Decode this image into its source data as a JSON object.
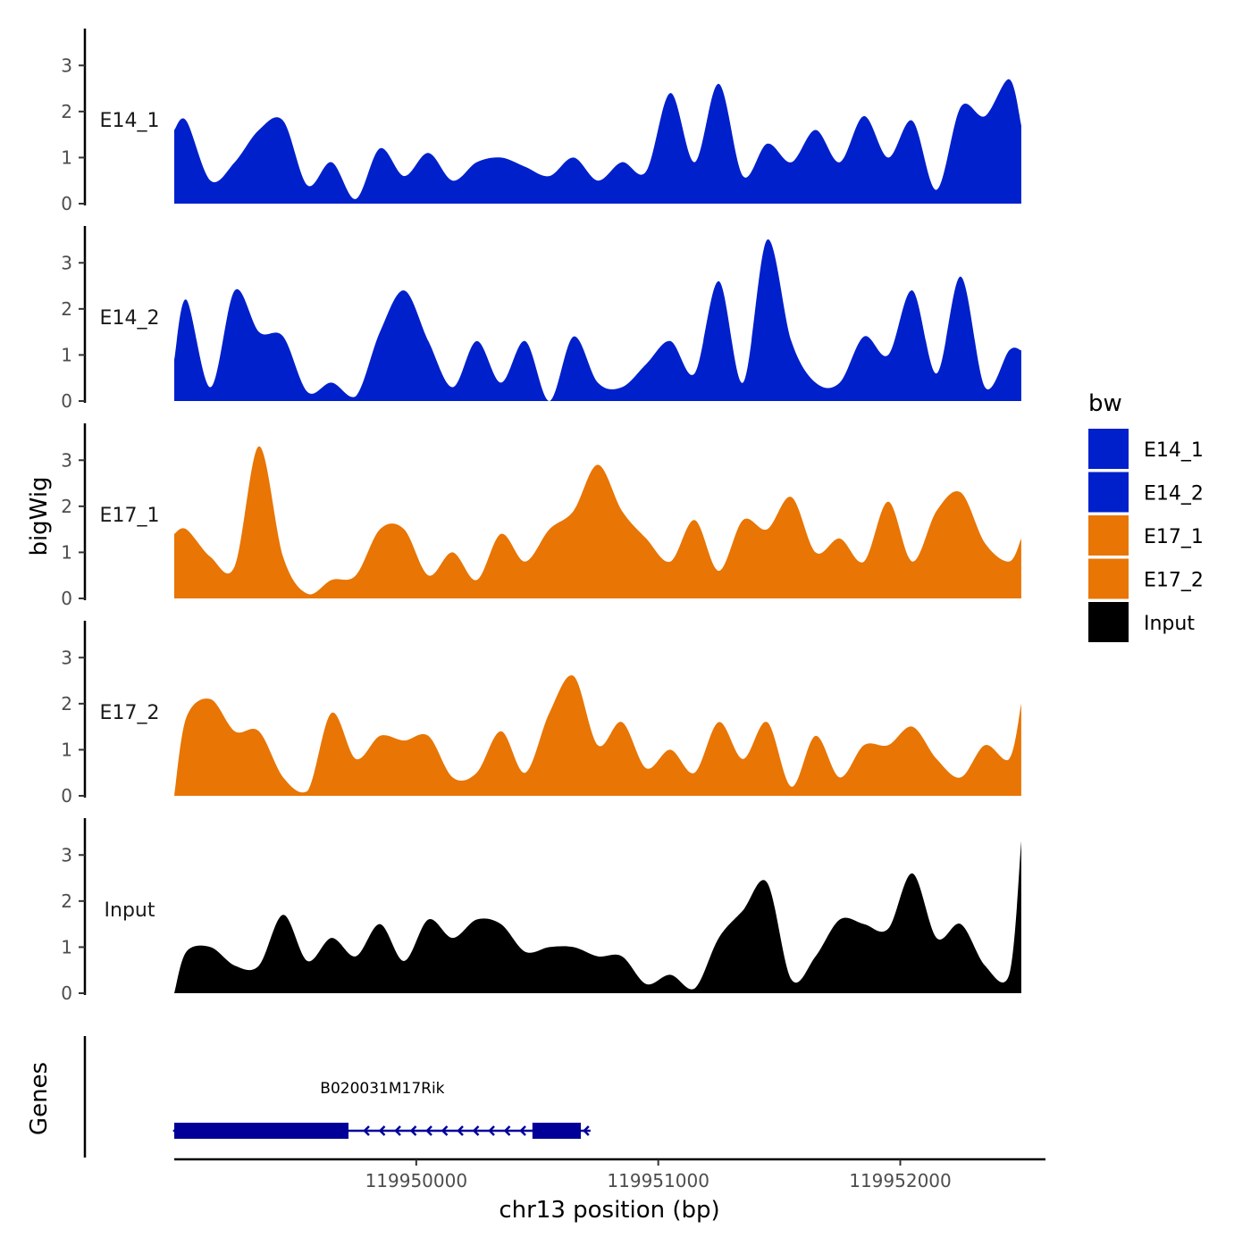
{
  "chart_data": {
    "type": "area",
    "xlabel": "chr13 position (bp)",
    "ylabel": "bigWig",
    "genes_label": "Genes",
    "xlim": [
      119949000,
      119952600
    ],
    "x_ticks": [
      {
        "value": 119950000,
        "label": "119950000"
      },
      {
        "value": 119951000,
        "label": "119951000"
      },
      {
        "value": 119952000,
        "label": "119952000"
      }
    ],
    "ylim": [
      0,
      3.8
    ],
    "y_ticks": [
      {
        "value": 0,
        "label": "0"
      },
      {
        "value": 1,
        "label": "1"
      },
      {
        "value": 2,
        "label": "2"
      },
      {
        "value": 3,
        "label": "3"
      }
    ],
    "legend": {
      "title": "bw",
      "entries": [
        {
          "name": "E14_1",
          "color": "#0020CC"
        },
        {
          "name": "E14_2",
          "color": "#0020CC"
        },
        {
          "name": "E17_1",
          "color": "#E87504"
        },
        {
          "name": "E17_2",
          "color": "#E87504"
        },
        {
          "name": "Input",
          "color": "#000000"
        }
      ]
    },
    "series": [
      {
        "name": "E14_1",
        "color": "#0020CC",
        "x": [
          119949000,
          119949050,
          119949150,
          119949250,
          119949350,
          119949450,
          119949550,
          119949650,
          119949750,
          119949850,
          119949950,
          119950050,
          119950150,
          119950250,
          119950350,
          119950450,
          119950550,
          119950650,
          119950750,
          119950850,
          119950950,
          119951050,
          119951150,
          119951250,
          119951350,
          119951450,
          119951550,
          119951650,
          119951750,
          119951850,
          119951950,
          119952050,
          119952150,
          119952250,
          119952350,
          119952450,
          119952500
        ],
        "values": [
          1.6,
          1.8,
          0.5,
          0.9,
          1.6,
          1.8,
          0.4,
          0.9,
          0.1,
          1.2,
          0.6,
          1.1,
          0.5,
          0.9,
          1.0,
          0.8,
          0.6,
          1.0,
          0.5,
          0.9,
          0.7,
          2.4,
          0.9,
          2.6,
          0.6,
          1.3,
          0.9,
          1.6,
          0.9,
          1.9,
          1.0,
          1.8,
          0.3,
          2.1,
          1.9,
          2.7,
          1.7
        ]
      },
      {
        "name": "E14_2",
        "color": "#0020CC",
        "x": [
          119949000,
          119949050,
          119949150,
          119949250,
          119949350,
          119949450,
          119949550,
          119949650,
          119949750,
          119949850,
          119949950,
          119950050,
          119950150,
          119950250,
          119950350,
          119950450,
          119950550,
          119950650,
          119950750,
          119950850,
          119950950,
          119951050,
          119951150,
          119951250,
          119951350,
          119951450,
          119951550,
          119951650,
          119951750,
          119951850,
          119951950,
          119952050,
          119952150,
          119952250,
          119952350,
          119952450,
          119952500
        ],
        "values": [
          0.9,
          2.2,
          0.3,
          2.4,
          1.5,
          1.4,
          0.2,
          0.4,
          0.1,
          1.5,
          2.4,
          1.3,
          0.3,
          1.3,
          0.4,
          1.3,
          0.0,
          1.4,
          0.4,
          0.3,
          0.8,
          1.3,
          0.6,
          2.6,
          0.4,
          3.5,
          1.3,
          0.4,
          0.4,
          1.4,
          1.0,
          2.4,
          0.6,
          2.7,
          0.3,
          1.1,
          1.1
        ]
      },
      {
        "name": "E17_1",
        "color": "#E87504",
        "x": [
          119949000,
          119949050,
          119949150,
          119949250,
          119949350,
          119949450,
          119949550,
          119949650,
          119949750,
          119949850,
          119949950,
          119950050,
          119950150,
          119950250,
          119950350,
          119950450,
          119950550,
          119950650,
          119950750,
          119950850,
          119950950,
          119951050,
          119951150,
          119951250,
          119951350,
          119951450,
          119951550,
          119951650,
          119951750,
          119951850,
          119951950,
          119952050,
          119952150,
          119952250,
          119952350,
          119952450,
          119952500
        ],
        "values": [
          1.4,
          1.5,
          0.9,
          0.7,
          3.3,
          0.9,
          0.1,
          0.4,
          0.5,
          1.5,
          1.5,
          0.5,
          1.0,
          0.4,
          1.4,
          0.8,
          1.5,
          1.9,
          2.9,
          1.9,
          1.3,
          0.8,
          1.7,
          0.6,
          1.7,
          1.5,
          2.2,
          1.0,
          1.3,
          0.8,
          2.1,
          0.8,
          1.9,
          2.3,
          1.2,
          0.8,
          1.3
        ]
      },
      {
        "name": "E17_2",
        "color": "#E87504",
        "x": [
          119949000,
          119949050,
          119949150,
          119949250,
          119949350,
          119949450,
          119949550,
          119949650,
          119949750,
          119949850,
          119949950,
          119950050,
          119950150,
          119950250,
          119950350,
          119950450,
          119950550,
          119950650,
          119950750,
          119950850,
          119950950,
          119951050,
          119951150,
          119951250,
          119951350,
          119951450,
          119951550,
          119951650,
          119951750,
          119951850,
          119951950,
          119952050,
          119952150,
          119952250,
          119952350,
          119952450,
          119952500
        ],
        "values": [
          0.0,
          1.7,
          2.1,
          1.4,
          1.4,
          0.4,
          0.1,
          1.8,
          0.8,
          1.3,
          1.2,
          1.3,
          0.4,
          0.5,
          1.4,
          0.5,
          1.8,
          2.6,
          1.1,
          1.6,
          0.6,
          1.0,
          0.5,
          1.6,
          0.8,
          1.6,
          0.2,
          1.3,
          0.4,
          1.1,
          1.1,
          1.5,
          0.8,
          0.4,
          1.1,
          0.8,
          2.0
        ]
      },
      {
        "name": "Input",
        "color": "#000000",
        "x": [
          119949000,
          119949050,
          119949150,
          119949250,
          119949350,
          119949450,
          119949550,
          119949650,
          119949750,
          119949850,
          119949950,
          119950050,
          119950150,
          119950250,
          119950350,
          119950450,
          119950550,
          119950650,
          119950750,
          119950850,
          119950950,
          119951050,
          119951150,
          119951250,
          119951350,
          119951450,
          119951550,
          119951650,
          119951750,
          119951850,
          119951950,
          119952050,
          119952150,
          119952250,
          119952350,
          119952450,
          119952500
        ],
        "values": [
          0.0,
          0.9,
          1.0,
          0.6,
          0.6,
          1.7,
          0.7,
          1.2,
          0.8,
          1.5,
          0.7,
          1.6,
          1.2,
          1.6,
          1.5,
          0.9,
          1.0,
          1.0,
          0.8,
          0.8,
          0.2,
          0.4,
          0.1,
          1.2,
          1.8,
          2.4,
          0.3,
          0.8,
          1.6,
          1.5,
          1.4,
          2.6,
          1.2,
          1.5,
          0.6,
          0.4,
          3.3
        ]
      }
    ],
    "genes": [
      {
        "name": "B020031M17Rik",
        "strand": "-",
        "start": 119949000,
        "end": 119950720,
        "exons": [
          {
            "start": 119949000,
            "end": 119949720
          },
          {
            "start": 119950480,
            "end": 119950680
          }
        ],
        "color": "#000099"
      }
    ]
  }
}
